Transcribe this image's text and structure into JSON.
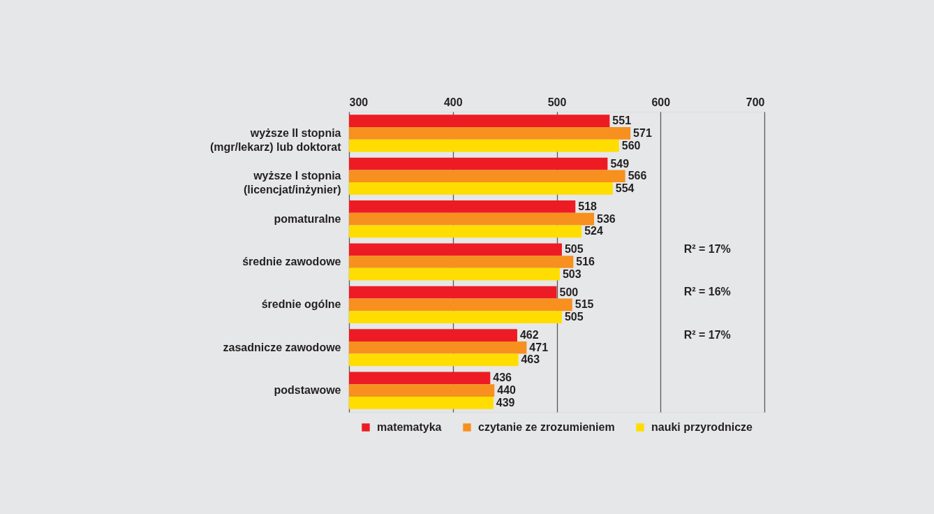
{
  "chart_data": {
    "type": "bar",
    "orientation": "horizontal",
    "categories": [
      "wyższe II stopnia\n(mgr/lekarz) lub doktorat",
      "wyższe I stopnia\n(licencjat/inżynier)",
      "pomaturalne",
      "średnie zawodowe",
      "średnie ogólne",
      "zasadnicze zawodowe",
      "podstawowe"
    ],
    "series": [
      {
        "name": "matematyka",
        "color": "#ed1c24",
        "values": [
          551,
          549,
          518,
          505,
          500,
          462,
          436
        ]
      },
      {
        "name": "czytanie ze zrozumieniem",
        "color": "#f7901e",
        "values": [
          571,
          566,
          536,
          516,
          515,
          471,
          440
        ]
      },
      {
        "name": "nauki przyrodnicze",
        "color": "#ffdd00",
        "values": [
          560,
          554,
          524,
          503,
          505,
          463,
          439
        ]
      }
    ],
    "xlim": [
      300,
      700
    ],
    "xticks": [
      300,
      400,
      500,
      600,
      700
    ],
    "grid": "x",
    "legend": "bottom",
    "data_labels": true,
    "annotations": [
      "R² = 17%",
      "R² = 16%",
      "R² = 17%"
    ]
  }
}
